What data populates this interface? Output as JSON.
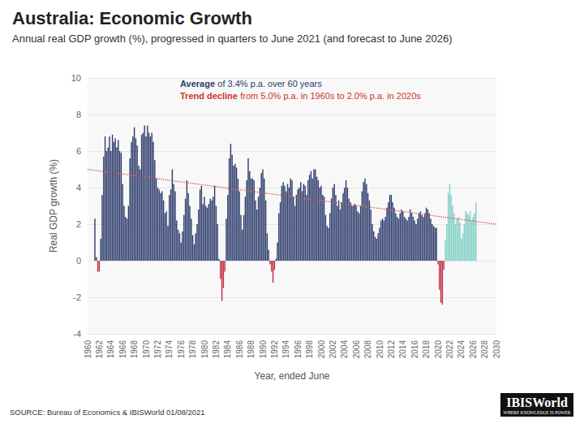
{
  "chart_data": {
    "type": "bar",
    "title": "Australia: Economic Growth",
    "subtitle": "Annual real GDP growth (%), progressed in quarters to June 2021 (and forecast to June 2026)",
    "x_label": "Year, ended June",
    "y_label": "Real GDP growth (%)",
    "x": [
      1961.25,
      1961.5,
      1961.75,
      1962,
      1962.25,
      1962.5,
      1962.75,
      1963,
      1963.25,
      1963.5,
      1963.75,
      1964,
      1964.25,
      1964.5,
      1964.75,
      1965,
      1965.25,
      1965.5,
      1965.75,
      1966,
      1966.25,
      1966.5,
      1966.75,
      1967,
      1967.25,
      1967.5,
      1967.75,
      1968,
      1968.25,
      1968.5,
      1968.75,
      1969,
      1969.25,
      1969.5,
      1969.75,
      1970,
      1970.25,
      1970.5,
      1970.75,
      1971,
      1971.25,
      1971.5,
      1971.75,
      1972,
      1972.25,
      1972.5,
      1972.75,
      1973,
      1973.25,
      1973.5,
      1973.75,
      1974,
      1974.25,
      1974.5,
      1974.75,
      1975,
      1975.25,
      1975.5,
      1975.75,
      1976,
      1976.25,
      1976.5,
      1976.75,
      1977,
      1977.25,
      1977.5,
      1977.75,
      1978,
      1978.25,
      1978.5,
      1978.75,
      1979,
      1979.25,
      1979.5,
      1979.75,
      1980,
      1980.25,
      1980.5,
      1980.75,
      1981,
      1981.25,
      1981.5,
      1981.75,
      1982,
      1982.25,
      1982.5,
      1982.75,
      1983,
      1983.25,
      1983.5,
      1983.75,
      1984,
      1984.25,
      1984.5,
      1984.75,
      1985,
      1985.25,
      1985.5,
      1985.75,
      1986,
      1986.25,
      1986.5,
      1986.75,
      1987,
      1987.25,
      1987.5,
      1987.75,
      1988,
      1988.25,
      1988.5,
      1988.75,
      1989,
      1989.25,
      1989.5,
      1989.75,
      1990,
      1990.25,
      1990.5,
      1990.75,
      1991,
      1991.25,
      1991.5,
      1991.75,
      1992,
      1992.25,
      1992.5,
      1992.75,
      1993,
      1993.25,
      1993.5,
      1993.75,
      1994,
      1994.25,
      1994.5,
      1994.75,
      1995,
      1995.25,
      1995.5,
      1995.75,
      1996,
      1996.25,
      1996.5,
      1996.75,
      1997,
      1997.25,
      1997.5,
      1997.75,
      1998,
      1998.25,
      1998.5,
      1998.75,
      1999,
      1999.25,
      1999.5,
      1999.75,
      2000,
      2000.25,
      2000.5,
      2000.75,
      2001,
      2001.25,
      2001.5,
      2001.75,
      2002,
      2002.25,
      2002.5,
      2002.75,
      2003,
      2003.25,
      2003.5,
      2003.75,
      2004,
      2004.25,
      2004.5,
      2004.75,
      2005,
      2005.25,
      2005.5,
      2005.75,
      2006,
      2006.25,
      2006.5,
      2006.75,
      2007,
      2007.25,
      2007.5,
      2007.75,
      2008,
      2008.25,
      2008.5,
      2008.75,
      2009,
      2009.25,
      2009.5,
      2009.75,
      2010,
      2010.25,
      2010.5,
      2010.75,
      2011,
      2011.25,
      2011.5,
      2011.75,
      2012,
      2012.25,
      2012.5,
      2012.75,
      2013,
      2013.25,
      2013.5,
      2013.75,
      2014,
      2014.25,
      2014.5,
      2014.75,
      2015,
      2015.25,
      2015.5,
      2015.75,
      2016,
      2016.25,
      2016.5,
      2016.75,
      2017,
      2017.25,
      2017.5,
      2017.75,
      2018,
      2018.25,
      2018.5,
      2018.75,
      2019,
      2019.25,
      2019.5,
      2019.75,
      2020,
      2020.25,
      2020.5,
      2020.75,
      2021,
      2021.25,
      2021.5,
      2021.75,
      2022,
      2022.25,
      2022.5,
      2022.75,
      2023,
      2023.25,
      2023.5,
      2023.75,
      2024,
      2024.25,
      2024.5,
      2024.75,
      2025,
      2025.25,
      2025.5,
      2025.75,
      2026,
      2026.25,
      2026.5
    ],
    "values": [
      2.3,
      0.2,
      -0.6,
      -0.6,
      1.2,
      3.6,
      5.7,
      6.8,
      6.0,
      6.2,
      6.8,
      6.0,
      6.9,
      6.5,
      6.7,
      6.2,
      6.6,
      6.0,
      5.9,
      4.2,
      3.0,
      2.4,
      2.3,
      3.0,
      5.6,
      6.5,
      6.8,
      7.3,
      6.7,
      6.3,
      5.2,
      5.0,
      6.9,
      7.0,
      7.4,
      6.8,
      7.4,
      7.0,
      6.8,
      7.0,
      6.5,
      5.5,
      4.5,
      4.0,
      3.9,
      3.7,
      3.8,
      3.3,
      2.6,
      2.7,
      1.9,
      3.6,
      3.9,
      5.0,
      4.2,
      3.8,
      2.2,
      1.7,
      1.5,
      1.0,
      1.6,
      2.5,
      3.4,
      4.4,
      3.7,
      3.0,
      2.3,
      1.4,
      0.9,
      1.5,
      2.0,
      2.8,
      3.9,
      4.1,
      3.1,
      3.5,
      3.0,
      2.9,
      3.1,
      3.4,
      3.3,
      3.5,
      4.1,
      3.0,
      2.0,
      0.1,
      -1.0,
      -2.2,
      -1.5,
      -0.6,
      2.3,
      3.6,
      5.6,
      6.4,
      5.8,
      5.2,
      5.3,
      5.1,
      4.5,
      3.8,
      2.5,
      1.7,
      2.5,
      3.5,
      4.4,
      5.6,
      4.9,
      4.5,
      4.5,
      4.4,
      3.3,
      2.8,
      3.5,
      4.0,
      4.8,
      5.0,
      4.5,
      3.3,
      1.5,
      0.6,
      -0.2,
      -0.6,
      -1.2,
      -0.5,
      0.1,
      1.0,
      2.6,
      3.2,
      4.1,
      4.3,
      4.1,
      3.8,
      4.2,
      4.0,
      4.5,
      4.4,
      3.5,
      3.0,
      3.6,
      3.9,
      4.0,
      4.3,
      3.8,
      4.2,
      4.1,
      3.6,
      4.4,
      4.7,
      4.9,
      4.5,
      5.0,
      5.0,
      4.6,
      4.4,
      4.0,
      4.1,
      3.6,
      3.5,
      2.5,
      1.9,
      1.8,
      2.6,
      3.4,
      4.0,
      4.2,
      3.6,
      3.0,
      3.3,
      2.8,
      3.2,
      3.7,
      4.0,
      4.4,
      4.0,
      3.4,
      3.2,
      3.0,
      3.0,
      3.1,
      3.0,
      2.7,
      2.6,
      3.0,
      3.8,
      4.3,
      4.5,
      4.2,
      3.7,
      3.3,
      2.8,
      2.0,
      1.6,
      1.3,
      1.2,
      1.5,
      1.8,
      2.2,
      2.3,
      2.2,
      2.4,
      2.9,
      3.2,
      3.6,
      3.6,
      3.2,
      2.9,
      2.6,
      2.4,
      2.3,
      2.6,
      2.8,
      2.7,
      2.4,
      2.3,
      2.2,
      2.4,
      2.8,
      2.6,
      2.4,
      2.2,
      2.0,
      2.3,
      2.6,
      2.7,
      2.5,
      2.4,
      2.6,
      2.9,
      2.8,
      2.6,
      2.3,
      2.0,
      1.9,
      1.8,
      1.8,
      -0.2,
      -1.6,
      -2.3,
      -2.4,
      -0.5,
      1.1,
      2.0,
      3.7,
      4.2,
      3.6,
      3.0,
      2.6,
      2.0,
      2.3,
      2.4,
      2.1,
      1.2,
      1.5,
      2.0,
      2.7,
      2.6,
      2.5,
      2.7,
      2.2,
      2.4,
      2.6,
      3.2
    ],
    "colors": [
      "#2b3a6b",
      "#2b3a6b",
      "#c0283c",
      "#c0283c",
      "#2b3a6b",
      "#2b3a6b",
      "#2b3a6b",
      "#2b3a6b",
      "#2b3a6b",
      "#2b3a6b",
      "#2b3a6b",
      "#2b3a6b",
      "#2b3a6b",
      "#2b3a6b",
      "#2b3a6b",
      "#2b3a6b",
      "#2b3a6b",
      "#2b3a6b",
      "#2b3a6b",
      "#2b3a6b",
      "#2b3a6b",
      "#2b3a6b",
      "#2b3a6b",
      "#2b3a6b",
      "#2b3a6b",
      "#2b3a6b",
      "#2b3a6b",
      "#2b3a6b",
      "#2b3a6b",
      "#2b3a6b",
      "#2b3a6b",
      "#2b3a6b",
      "#2b3a6b",
      "#2b3a6b",
      "#2b3a6b",
      "#2b3a6b",
      "#2b3a6b",
      "#2b3a6b",
      "#2b3a6b",
      "#2b3a6b",
      "#2b3a6b",
      "#2b3a6b",
      "#2b3a6b",
      "#2b3a6b",
      "#2b3a6b",
      "#2b3a6b",
      "#2b3a6b",
      "#2b3a6b",
      "#2b3a6b",
      "#2b3a6b",
      "#2b3a6b",
      "#2b3a6b",
      "#2b3a6b",
      "#2b3a6b",
      "#2b3a6b",
      "#2b3a6b",
      "#2b3a6b",
      "#2b3a6b",
      "#2b3a6b",
      "#2b3a6b",
      "#2b3a6b",
      "#2b3a6b",
      "#2b3a6b",
      "#2b3a6b",
      "#2b3a6b",
      "#2b3a6b",
      "#2b3a6b",
      "#2b3a6b",
      "#2b3a6b",
      "#2b3a6b",
      "#2b3a6b",
      "#2b3a6b",
      "#2b3a6b",
      "#2b3a6b",
      "#2b3a6b",
      "#2b3a6b",
      "#2b3a6b",
      "#2b3a6b",
      "#2b3a6b",
      "#2b3a6b",
      "#2b3a6b",
      "#2b3a6b",
      "#2b3a6b",
      "#2b3a6b",
      "#2b3a6b",
      "#2b3a6b",
      "#c0283c",
      "#c0283c",
      "#c0283c",
      "#c0283c",
      "#2b3a6b",
      "#2b3a6b",
      "#2b3a6b",
      "#2b3a6b",
      "#2b3a6b",
      "#2b3a6b",
      "#2b3a6b",
      "#2b3a6b",
      "#2b3a6b",
      "#2b3a6b",
      "#2b3a6b",
      "#2b3a6b",
      "#2b3a6b",
      "#2b3a6b",
      "#2b3a6b",
      "#2b3a6b",
      "#2b3a6b",
      "#2b3a6b",
      "#2b3a6b",
      "#2b3a6b",
      "#2b3a6b",
      "#2b3a6b",
      "#2b3a6b",
      "#2b3a6b",
      "#2b3a6b",
      "#2b3a6b",
      "#2b3a6b",
      "#2b3a6b",
      "#2b3a6b",
      "#2b3a6b",
      "#c0283c",
      "#c0283c",
      "#c0283c",
      "#c0283c",
      "#2b3a6b",
      "#2b3a6b",
      "#2b3a6b",
      "#2b3a6b",
      "#2b3a6b",
      "#2b3a6b",
      "#2b3a6b",
      "#2b3a6b",
      "#2b3a6b",
      "#2b3a6b",
      "#2b3a6b",
      "#2b3a6b",
      "#2b3a6b",
      "#2b3a6b",
      "#2b3a6b",
      "#2b3a6b",
      "#2b3a6b",
      "#2b3a6b",
      "#2b3a6b",
      "#2b3a6b",
      "#2b3a6b",
      "#2b3a6b",
      "#2b3a6b",
      "#2b3a6b",
      "#2b3a6b",
      "#2b3a6b",
      "#2b3a6b",
      "#2b3a6b",
      "#2b3a6b",
      "#2b3a6b",
      "#2b3a6b",
      "#2b3a6b",
      "#2b3a6b",
      "#2b3a6b",
      "#2b3a6b",
      "#2b3a6b",
      "#2b3a6b",
      "#2b3a6b",
      "#2b3a6b",
      "#2b3a6b",
      "#2b3a6b",
      "#2b3a6b",
      "#2b3a6b",
      "#2b3a6b",
      "#2b3a6b",
      "#2b3a6b",
      "#2b3a6b",
      "#2b3a6b",
      "#2b3a6b",
      "#2b3a6b",
      "#2b3a6b",
      "#2b3a6b",
      "#2b3a6b",
      "#2b3a6b",
      "#2b3a6b",
      "#2b3a6b",
      "#2b3a6b",
      "#2b3a6b",
      "#2b3a6b",
      "#2b3a6b",
      "#2b3a6b",
      "#2b3a6b",
      "#2b3a6b",
      "#2b3a6b",
      "#2b3a6b",
      "#2b3a6b",
      "#2b3a6b",
      "#2b3a6b",
      "#2b3a6b",
      "#2b3a6b",
      "#2b3a6b",
      "#2b3a6b",
      "#2b3a6b",
      "#2b3a6b",
      "#2b3a6b",
      "#2b3a6b",
      "#2b3a6b",
      "#2b3a6b",
      "#2b3a6b",
      "#2b3a6b",
      "#2b3a6b",
      "#2b3a6b",
      "#2b3a6b",
      "#2b3a6b",
      "#2b3a6b",
      "#2b3a6b",
      "#2b3a6b",
      "#2b3a6b",
      "#2b3a6b",
      "#2b3a6b",
      "#2b3a6b",
      "#2b3a6b",
      "#2b3a6b",
      "#2b3a6b",
      "#2b3a6b",
      "#2b3a6b",
      "#2b3a6b",
      "#2b3a6b",
      "#2b3a6b",
      "#2b3a6b",
      "#2b3a6b",
      "#2b3a6b",
      "#2b3a6b",
      "#2b3a6b",
      "#2b3a6b",
      "#2b3a6b",
      "#2b3a6b",
      "#2b3a6b",
      "#2b3a6b",
      "#2b3a6b",
      "#2b3a6b",
      "#c0283c",
      "#c0283c",
      "#c0283c",
      "#c0283c",
      "#c0283c",
      "#7fcfc3",
      "#7fcfc3",
      "#7fcfc3",
      "#7fcfc3",
      "#7fcfc3",
      "#7fcfc3",
      "#7fcfc3",
      "#7fcfc3",
      "#7fcfc3",
      "#7fcfc3",
      "#7fcfc3",
      "#7fcfc3",
      "#7fcfc3",
      "#7fcfc3",
      "#7fcfc3",
      "#7fcfc3",
      "#7fcfc3",
      "#7fcfc3",
      "#7fcfc3",
      "#7fcfc3",
      "#7fcfc3",
      "#7fcfc3"
    ],
    "xlim": [
      1960,
      2030
    ],
    "xticks": [
      1960,
      1962,
      1964,
      1966,
      1968,
      1970,
      1972,
      1974,
      1976,
      1978,
      1980,
      1982,
      1984,
      1986,
      1988,
      1990,
      1992,
      1994,
      1996,
      1998,
      2000,
      2002,
      2004,
      2006,
      2008,
      2010,
      2012,
      2014,
      2016,
      2018,
      2020,
      2022,
      2024,
      2026,
      2028,
      2030
    ],
    "ylim": [
      -4,
      10
    ],
    "yticks": [
      -4,
      -2,
      0,
      2,
      4,
      6,
      8,
      10
    ],
    "grid": true,
    "trend": {
      "x": [
        1960,
        2030
      ],
      "values": [
        5.0,
        2.0
      ],
      "color": "#d9534f",
      "line_style": "dotted"
    },
    "annotations": [
      {
        "parts": [
          "Average",
          "of 3.4% p.a. over 60 years"
        ],
        "color": "#2b3a6b"
      },
      {
        "parts": [
          "Trend decline",
          "from 5.0% p.a. in 1960s to 2.0% p.a. in 2020s"
        ],
        "color": "#d0312d"
      }
    ],
    "source": "SOURCE: Bureau of Economics & IBISWorld 01/08/2021",
    "logo": {
      "name": "IBISWorld",
      "tagline": "WHERE KNOWLEDGE IS POWER"
    }
  }
}
